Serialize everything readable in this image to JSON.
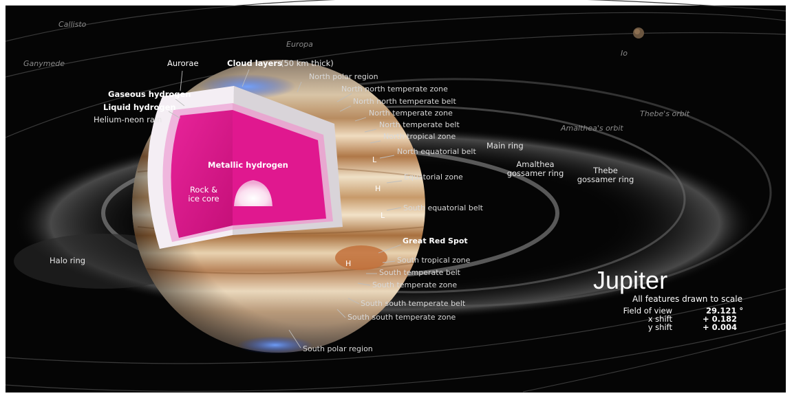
{
  "colors": {
    "background": "#000000",
    "frame": "#ffffff",
    "label_text": "#d8d8d8",
    "label_bold": "#ffffff",
    "moon_label": "#8a8a8a",
    "metallic_hydrogen": "#e0188f",
    "liquid_hydrogen": "#efb6dd",
    "gaseous_hydrogen": "#f4eef4",
    "core": "#ffffff",
    "aurora": "#3a7bff",
    "planet_band_light": "#f0dcc0",
    "planet_band_dark": "#a8703e"
  },
  "moons": {
    "callisto": "Callisto",
    "ganymede": "Ganymede",
    "europa": "Europa",
    "io": "Io"
  },
  "orbits": {
    "thebe": "Thebe's orbit",
    "amalthea": "Amalthea's orbit"
  },
  "rings": {
    "halo": "Halo ring",
    "main": "Main ring",
    "amalthea_gossamer_1": "Amalthea",
    "amalthea_gossamer_2": "gossamer ring",
    "thebe_gossamer_1": "Thebe",
    "thebe_gossamer_2": "gossamer ring"
  },
  "layers": {
    "aurorae": "Aurorae",
    "cloud_bold": "Cloud layers",
    "cloud_rest": "(50 km thick)",
    "gaseous_hydrogen": "Gaseous hydrogen",
    "liquid_hydrogen": "Liquid hydrogen",
    "helium_neon_rain": "Helium-neon rain",
    "metallic_hydrogen": "Metallic hydrogen",
    "core_1": "Rock &",
    "core_2": "ice core"
  },
  "zones": {
    "north_polar_region": "North polar region",
    "nn_temperate_zone": "North north temperate zone",
    "nn_temperate_belt": "North north temperate belt",
    "n_temperate_zone": "North temperate zone",
    "n_temperate_belt": "North temperate belt",
    "n_tropical_zone": "North tropical zone",
    "n_equatorial_belt": "North equatorial belt",
    "equatorial_zone": "Equatorial zone",
    "s_equatorial_belt": "South equatorial belt",
    "great_red_spot": "Great Red Spot",
    "s_tropical_zone": "South tropical zone",
    "s_temperate_belt": "South temperate belt",
    "s_temperate_zone": "South temperate zone",
    "ss_temperate_belt": "South south temperate belt",
    "ss_temperate_zone": "South south temperate zone",
    "south_polar_region": "South polar region"
  },
  "vortex_marks": {
    "l1": "L",
    "h1": "H",
    "l2": "L",
    "h2": "H"
  },
  "title": {
    "name": "Jupiter",
    "subtitle": "All features drawn to scale",
    "fov_label": "Field of view",
    "fov_value": "29.121 °",
    "x_shift_label": "x shift",
    "x_shift_value": "+ 0.182",
    "y_shift_label": "y shift",
    "y_shift_value": "+ 0.004"
  }
}
